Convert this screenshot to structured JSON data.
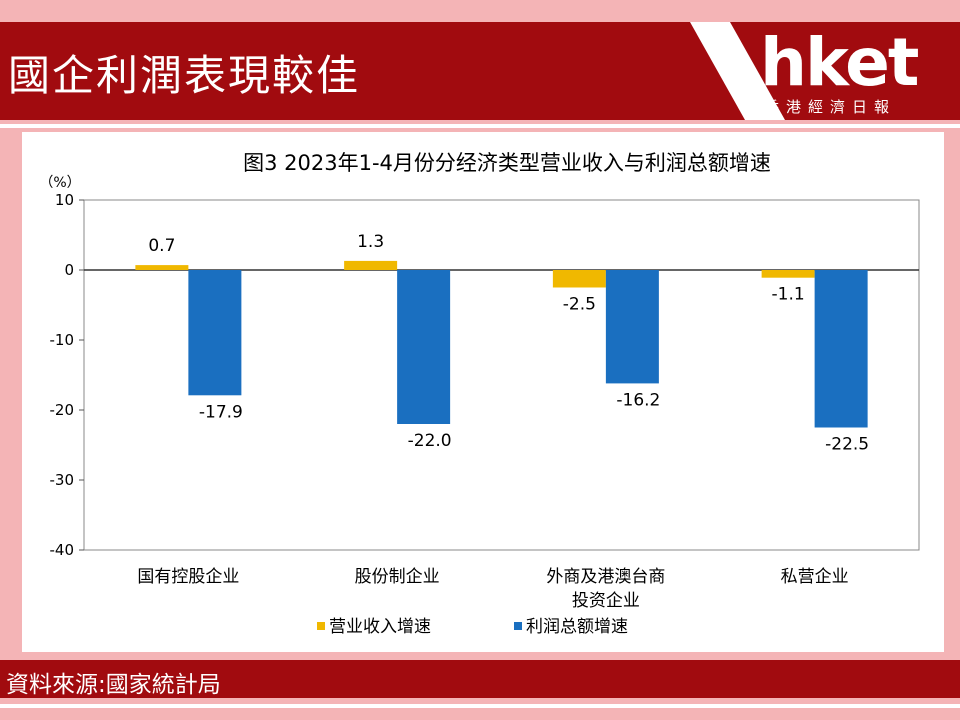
{
  "header": {
    "title": "國企利潤表現較佳",
    "logo_text": "hket",
    "logo_subtitle": "香港經濟日報"
  },
  "footer": {
    "source": "資料來源:國家統計局"
  },
  "colors": {
    "brand_red": "#a10b0f",
    "background_pink": "#f4b4b6",
    "revenue_bar": "#f0b800",
    "profit_bar": "#1a6fc0"
  },
  "chart_data": {
    "type": "bar",
    "title": "图3  2023年1-4月份分经济类型营业收入与利润总额增速",
    "ylabel": "（%）",
    "xlabel": "",
    "ylim": [
      -40,
      10
    ],
    "yticks": [
      "10",
      "0",
      "-10",
      "-20",
      "-30",
      "-40"
    ],
    "categories": [
      "国有控股企业",
      "股份制企业",
      "外商及港澳台商投资企业",
      "私营企业"
    ],
    "category_lines": [
      [
        "国有控股企业"
      ],
      [
        "股份制企业"
      ],
      [
        "外商及港澳台商",
        "投资企业"
      ],
      [
        "私营企业"
      ]
    ],
    "series": [
      {
        "name": "营业收入增速",
        "values": [
          0.7,
          1.3,
          -2.5,
          -1.1
        ],
        "labels": [
          "0.7",
          "1.3",
          "-2.5",
          "-1.1"
        ],
        "color": "#f0b800"
      },
      {
        "name": "利润总额增速",
        "values": [
          -17.9,
          -22.0,
          -16.2,
          -22.5
        ],
        "labels": [
          "-17.9",
          "-22.0",
          "-16.2",
          "-22.5"
        ],
        "color": "#1a6fc0"
      }
    ],
    "grid": false,
    "legend_position": "bottom"
  }
}
